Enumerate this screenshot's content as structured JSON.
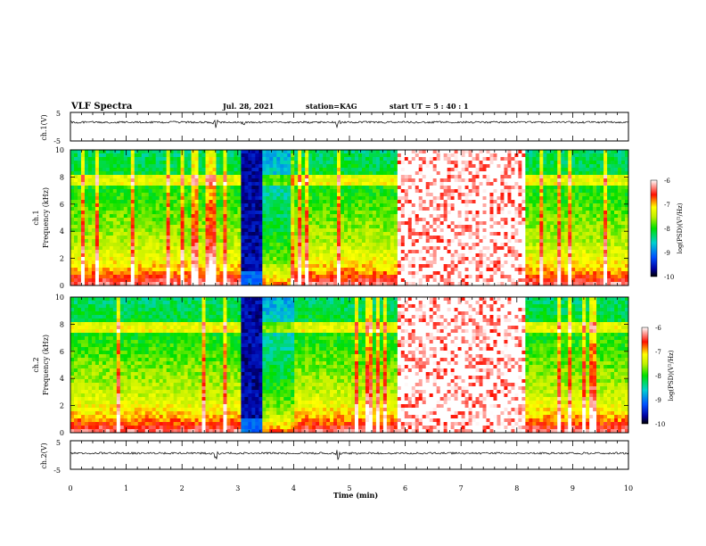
{
  "header": {
    "title": "VLF Spectra",
    "date": "Jul. 28, 2021",
    "station": "station=KAG",
    "start": "start UT = 5 : 40 : 1"
  },
  "panels": {
    "ch1_wave": {
      "ylabel": "ch.1(V)",
      "yticks": [
        "5",
        "-5"
      ]
    },
    "ch1_spec": {
      "ylabel_line1": "ch.1",
      "ylabel_line2": "Frequency (kHz)",
      "yticks": [
        "0",
        "2",
        "4",
        "6",
        "8",
        "10"
      ]
    },
    "ch2_spec": {
      "ylabel_line1": "ch.2",
      "ylabel_line2": "Frequency (kHz)",
      "yticks": [
        "0",
        "2",
        "4",
        "6",
        "8",
        "10"
      ]
    },
    "ch2_wave": {
      "ylabel": "ch.2(V)",
      "yticks": [
        "5",
        "-5"
      ]
    }
  },
  "colorbar": {
    "label": "log(PSD)(V²/Hz)",
    "ticks": [
      "-6",
      "-7",
      "-8",
      "-9",
      "-10"
    ]
  },
  "xaxis": {
    "label": "Time (min)",
    "ticks": [
      "0",
      "1",
      "2",
      "3",
      "4",
      "5",
      "6",
      "7",
      "8",
      "9",
      "10"
    ]
  },
  "chart_data": [
    {
      "type": "line",
      "name": "ch1_waveform",
      "ylabel": "ch.1(V)",
      "xlim": [
        0,
        10
      ],
      "ylim": [
        -5,
        5
      ],
      "baseline": 0,
      "disturbances_min": [
        2.6,
        3.1,
        4.8
      ]
    },
    {
      "type": "heatmap",
      "name": "ch1_spectrogram",
      "ylabel": "Frequency (kHz)",
      "xlim": [
        0,
        10
      ],
      "ylim": [
        0,
        10
      ],
      "zlim": [
        -10,
        -6
      ],
      "band_kHz": 7.8,
      "low_power_interval_min": [
        3.05,
        3.45
      ],
      "weak_interval_min": [
        5.85,
        8.15
      ]
    },
    {
      "type": "heatmap",
      "name": "ch2_spectrogram",
      "ylabel": "Frequency (kHz)",
      "xlim": [
        0,
        10
      ],
      "ylim": [
        0,
        10
      ],
      "zlim": [
        -10,
        -6
      ],
      "band_kHz": 7.8,
      "low_power_interval_min": [
        3.05,
        3.45
      ],
      "weak_interval_min": [
        5.85,
        8.15
      ]
    },
    {
      "type": "line",
      "name": "ch2_waveform",
      "ylabel": "ch.2(V)",
      "xlim": [
        0,
        10
      ],
      "ylim": [
        -5,
        5
      ],
      "baseline": 0,
      "disturbances_min": [
        2.6,
        4.8
      ]
    }
  ]
}
